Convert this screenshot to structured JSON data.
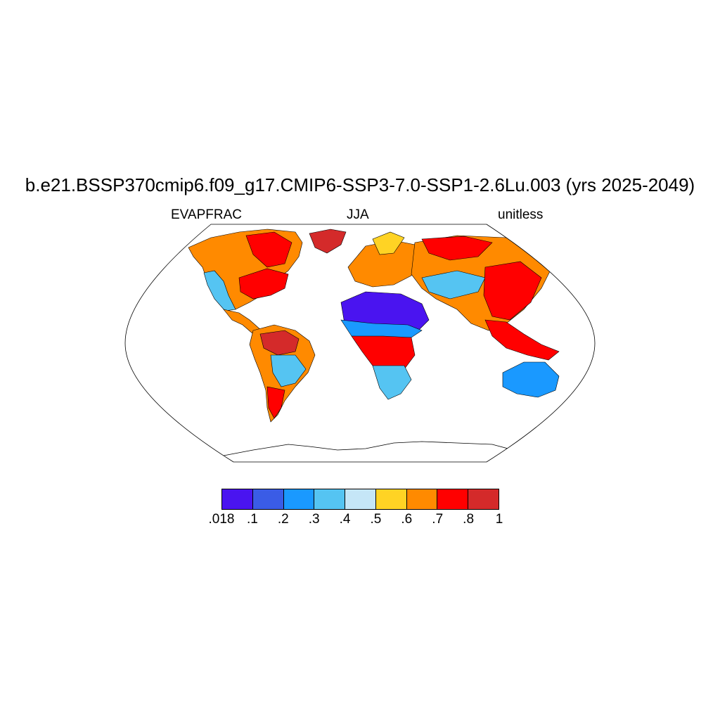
{
  "title": "b.e21.BSSP370cmip6.f09_g17.CMIP6-SSP3-7.0-SSP1-2.6Lu.003 (yrs 2025-2049)",
  "subtitle_left": "EVAPFRAC",
  "subtitle_center": "JJA",
  "subtitle_right": "unitless",
  "projection": "Robinson",
  "colorbar": {
    "labels": [
      ".018",
      ".1",
      ".2",
      ".3",
      ".4",
      ".5",
      ".6",
      ".7",
      ".8",
      "1"
    ],
    "colors": [
      "#4a14f0",
      "#3a5ce6",
      "#1a99ff",
      "#55c4f2",
      "#c5e6f7",
      "#ffd324",
      "#ff8a00",
      "#ff0000",
      "#d42a2a"
    ]
  },
  "ocean_color": "#ffffff",
  "coastline_color": "#000000"
}
